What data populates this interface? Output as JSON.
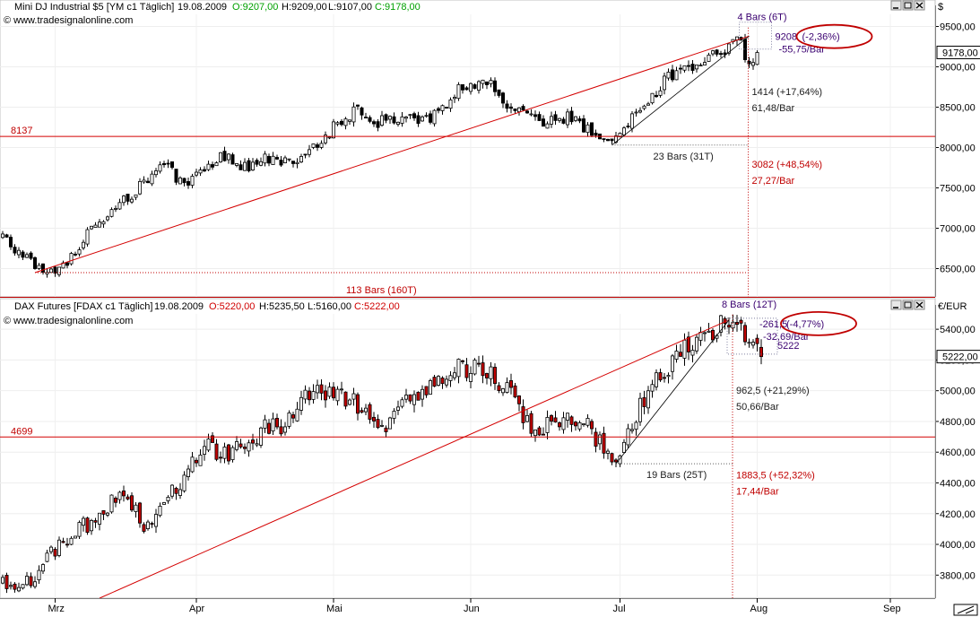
{
  "colors": {
    "up_fill": "#ffffff",
    "down_fill_top": "#000000",
    "down_fill_bottom": "#c00000",
    "candle_line": "#000000",
    "trend": "#d40000",
    "support": "#d40000",
    "annotation_red": "#c00000",
    "annotation_black": "#202020",
    "annotation_purple": "#3a0070",
    "ellipse": "#c00000",
    "ohlc_green": "#00a000",
    "ohlc_red": "#d00000"
  },
  "header_icons": [
    "minimize-icon",
    "maximize-icon",
    "close-icon"
  ],
  "chart_data": [
    {
      "type": "candlestick",
      "header": {
        "name": "Mini DJ Industrial $5 [YM c1  Täglich]",
        "date": "19.08.2009",
        "open": "O:9207,00",
        "high": "H:9209,00",
        "low": "L:9107,00",
        "close": "C:9178,00"
      },
      "source": "© www.tradesignalonline.com",
      "unit": "$",
      "ylim": [
        6150,
        9650
      ],
      "y_ticks": [
        6500,
        7000,
        7500,
        8000,
        8500,
        9000,
        9500
      ],
      "y_tick_labels": [
        "6500,00",
        "7000,00",
        "7500,00",
        "8000,00",
        "8500,00",
        "9000,00",
        "9500,00"
      ],
      "last_price": 9178,
      "last_price_label": "9178,00",
      "support_level": 8137,
      "support_label": "8137",
      "close_path": [
        [
          0,
          6900
        ],
        [
          4,
          6700
        ],
        [
          8,
          6550
        ],
        [
          12,
          6450
        ],
        [
          16,
          6600
        ],
        [
          22,
          6980
        ],
        [
          28,
          7250
        ],
        [
          35,
          7550
        ],
        [
          40,
          7800
        ],
        [
          45,
          7500
        ],
        [
          50,
          7750
        ],
        [
          55,
          7900
        ],
        [
          60,
          7750
        ],
        [
          65,
          7850
        ],
        [
          70,
          7800
        ],
        [
          75,
          7950
        ],
        [
          80,
          8150
        ],
        [
          85,
          8400
        ],
        [
          88,
          8450
        ],
        [
          92,
          8300
        ],
        [
          96,
          8350
        ],
        [
          100,
          8380
        ],
        [
          104,
          8300
        ],
        [
          108,
          8450
        ],
        [
          112,
          8700
        ],
        [
          116,
          8800
        ],
        [
          121,
          8760
        ],
        [
          123,
          8600
        ],
        [
          127,
          8500
        ],
        [
          131,
          8350
        ],
        [
          135,
          8300
        ],
        [
          140,
          8400
        ],
        [
          144,
          8250
        ],
        [
          148,
          8100
        ],
        [
          151,
          8080
        ],
        [
          154,
          8200
        ],
        [
          158,
          8500
        ],
        [
          162,
          8700
        ],
        [
          166,
          8900
        ],
        [
          170,
          9000
        ],
        [
          175,
          9150
        ],
        [
          180,
          9250
        ],
        [
          183,
          9300
        ],
        [
          185,
          9050
        ],
        [
          187,
          9178
        ]
      ],
      "trendline": {
        "from": [
          8,
          6450
        ],
        "to": [
          185,
          9380
        ]
      },
      "swing_line": {
        "from": [
          151,
          8030
        ],
        "to": [
          185,
          9380
        ]
      },
      "swing_low": {
        "bar": 151,
        "price": 8030
      },
      "swing_high": {
        "bar": 183,
        "price": 9420
      },
      "labels": {
        "bars_total": "113 Bars (160T)",
        "bars_swing": "23 Bars (31T)",
        "bars_recent": "4 Bars (6T)",
        "gain_swing": "1414 (+17,64%)",
        "rate_swing": "61,48/Bar",
        "gain_total": "3082 (+48,54%)",
        "rate_total": "27,27/Bar",
        "recent_price": "9208",
        "recent_change": "(-2,36%)",
        "recent_rate": "-55,75/Bar"
      }
    },
    {
      "type": "candlestick",
      "header": {
        "name": "DAX Futures [FDAX c1  Täglich]",
        "date": "19.08.2009",
        "open": "O:5220,00",
        "high": "H:5235,50",
        "low": "L:5160,00",
        "close": "C:5222,00"
      },
      "source": "© www.tradesignalonline.com",
      "unit": "€/EUR",
      "ylim": [
        3650,
        5500
      ],
      "y_ticks": [
        3800,
        4000,
        4200,
        4400,
        4600,
        4800,
        5000,
        5200,
        5400
      ],
      "y_tick_labels": [
        "3800,00",
        "4000,00",
        "4200,00",
        "4400,00",
        "4600,00",
        "4800,00",
        "5000,00",
        "5200,00",
        "5400,00"
      ],
      "last_price": 5222,
      "last_price_label": "5222,00",
      "support_level": 4699,
      "support_label": "4699",
      "close_path": [
        [
          0,
          3760
        ],
        [
          4,
          3720
        ],
        [
          8,
          3780
        ],
        [
          12,
          3950
        ],
        [
          16,
          4050
        ],
        [
          22,
          4150
        ],
        [
          28,
          4300
        ],
        [
          32,
          4250
        ],
        [
          36,
          4100
        ],
        [
          40,
          4250
        ],
        [
          45,
          4450
        ],
        [
          50,
          4650
        ],
        [
          55,
          4580
        ],
        [
          60,
          4650
        ],
        [
          65,
          4750
        ],
        [
          70,
          4780
        ],
        [
          75,
          4950
        ],
        [
          80,
          5000
        ],
        [
          85,
          4950
        ],
        [
          88,
          4900
        ],
        [
          92,
          4750
        ],
        [
          96,
          4800
        ],
        [
          100,
          5000
        ],
        [
          104,
          4980
        ],
        [
          108,
          5050
        ],
        [
          112,
          5150
        ],
        [
          116,
          5150
        ],
        [
          121,
          5100
        ],
        [
          124,
          5050
        ],
        [
          128,
          4880
        ],
        [
          132,
          4750
        ],
        [
          136,
          4800
        ],
        [
          140,
          4850
        ],
        [
          144,
          4800
        ],
        [
          148,
          4650
        ],
        [
          152,
          4580
        ],
        [
          155,
          4700
        ],
        [
          158,
          4900
        ],
        [
          162,
          5080
        ],
        [
          166,
          5200
        ],
        [
          170,
          5300
        ],
        [
          176,
          5400
        ],
        [
          180,
          5450
        ],
        [
          182,
          5400
        ],
        [
          185,
          5320
        ],
        [
          188,
          5222
        ]
      ],
      "trendline": {
        "from": [
          24,
          3650
        ],
        "to": [
          180,
          5460
        ]
      },
      "swing_line": {
        "from": [
          152,
          4525
        ],
        "to": [
          180,
          5460
        ]
      },
      "swing_low": {
        "bar": 152,
        "price": 4525
      },
      "swing_high": {
        "bar": 180,
        "price": 5460
      },
      "labels": {
        "bars_total": "",
        "bars_swing": "19 Bars (25T)",
        "bars_recent": "8 Bars (12T)",
        "gain_swing": "962,5 (+21,29%)",
        "rate_swing": "50,66/Bar",
        "gain_total": "1883,5 (+52,32%)",
        "rate_total": "17,44/Bar",
        "recent_price": "-261,5",
        "recent_change": "(-4,77%)",
        "recent_rate": "-32,69/Bar",
        "recent_value": "5222"
      }
    }
  ],
  "x_axis": {
    "months": [
      {
        "label": "Mrz",
        "bar": 13
      },
      {
        "label": "Apr",
        "bar": 48
      },
      {
        "label": "Mai",
        "bar": 82
      },
      {
        "label": "Jun",
        "bar": 116
      },
      {
        "label": "Jul",
        "bar": 153
      },
      {
        "label": "Aug",
        "bar": 187
      },
      {
        "label": "Sep",
        "bar": 220
      }
    ],
    "bar_count": 232
  }
}
